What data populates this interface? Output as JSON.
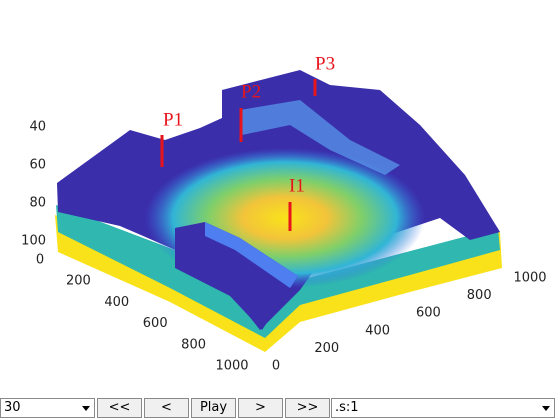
{
  "axes": {
    "x_ticks": [
      0,
      200,
      400,
      600,
      800,
      1000
    ],
    "y_ticks": [
      0,
      200,
      400,
      600,
      800,
      1000
    ],
    "z_ticks": [
      40,
      60,
      80,
      100
    ]
  },
  "wells": [
    {
      "label": "P1"
    },
    {
      "label": "P2"
    },
    {
      "label": "P3"
    },
    {
      "label": "I1"
    }
  ],
  "controls": {
    "step": "30",
    "buttons": [
      "<<",
      "<",
      "Play",
      ">",
      ">>"
    ],
    "selector": ".s:1"
  }
}
